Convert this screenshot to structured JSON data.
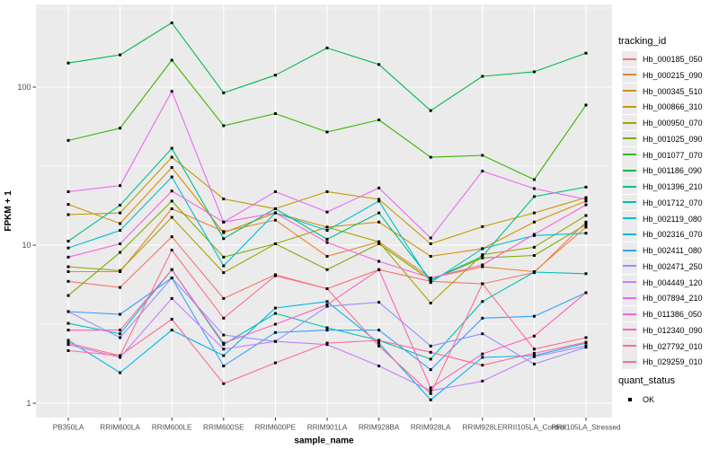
{
  "figure": {
    "panel_bg": "#EBEBEB",
    "grid_color": "#FFFFFF",
    "tick_mark_color": "#333333",
    "tick_label_color": "#4D4D4D",
    "axis_title_color": "#000000",
    "point_color": "#000000"
  },
  "chart_data": {
    "type": "line",
    "title": "",
    "xlabel": "sample_name",
    "ylabel": "FPKM + 1",
    "y_scale": "log10",
    "y_ticks": [
      "1",
      "10",
      "100"
    ],
    "y_tick_values": [
      1,
      10,
      100
    ],
    "y_minor_values": [
      3.1623,
      31.623,
      316.23
    ],
    "ylim": [
      0.81,
      334
    ],
    "grid": true,
    "legend_position": "right",
    "legend_title": "tracking_id",
    "quant_legend": {
      "title": "quant_status",
      "items": [
        {
          "label": "OK",
          "shape": "square",
          "color": "#000000"
        }
      ]
    },
    "point_marker": {
      "shape": "square",
      "color": "#000000",
      "size": 3
    },
    "categories": [
      "PB350LA",
      "RRIM600LA",
      "RRIM600LE",
      "RRIM600SE",
      "RRIM600PE",
      "RRIM901LA",
      "RRIM928BA",
      "RRIM928LA",
      "RRIM928LE",
      "RRII105LA_Control",
      "RRII105LA_Stressed"
    ],
    "series": [
      {
        "name": "Hb_000185_050",
        "color": "#F8766D",
        "values": [
          5.9,
          5.4,
          11.3,
          4.6,
          6.5,
          5.3,
          7.0,
          5.9,
          5.7,
          6.7,
          14.0
        ]
      },
      {
        "name": "Hb_000215_090",
        "color": "#EA8331",
        "values": [
          6.8,
          6.8,
          17.0,
          12.2,
          14.4,
          8.5,
          10.5,
          6.2,
          7.3,
          6.8,
          13.0
        ]
      },
      {
        "name": "Hb_000345_510",
        "color": "#D89000",
        "values": [
          18.1,
          13.7,
          31.0,
          12.0,
          16.0,
          13.0,
          14.0,
          8.5,
          9.5,
          14.0,
          19.0
        ]
      },
      {
        "name": "Hb_000866_310",
        "color": "#C09B00",
        "values": [
          15.6,
          16.0,
          36.0,
          19.6,
          17.0,
          21.8,
          19.5,
          10.2,
          13.1,
          16.0,
          20.0
        ]
      },
      {
        "name": "Hb_000950_070",
        "color": "#A3A500",
        "values": [
          7.3,
          6.9,
          15.0,
          6.7,
          10.2,
          13.0,
          10.5,
          4.3,
          8.7,
          9.7,
          15.4
        ]
      },
      {
        "name": "Hb_001025_090",
        "color": "#7CAE00",
        "values": [
          4.8,
          9.0,
          19.0,
          8.4,
          10.2,
          7.0,
          10.2,
          6.0,
          8.3,
          8.6,
          13.5
        ]
      },
      {
        "name": "Hb_001077_070",
        "color": "#39B600",
        "values": [
          46,
          55,
          148,
          57,
          68,
          52,
          62,
          36,
          37,
          26,
          77
        ]
      },
      {
        "name": "Hb_001186_090",
        "color": "#00BB4E",
        "values": [
          142,
          160,
          255,
          92,
          119,
          177,
          139,
          71,
          117,
          125,
          164
        ]
      },
      {
        "name": "Hb_001396_210",
        "color": "#00C087",
        "values": [
          10.6,
          17.9,
          41.0,
          11.0,
          17.0,
          10.9,
          16.0,
          6.0,
          8.5,
          20.3,
          23.3
        ]
      },
      {
        "name": "Hb_001712_070",
        "color": "#00C0B2",
        "values": [
          3.2,
          2.75,
          7.0,
          2.35,
          3.7,
          3.0,
          2.5,
          1.9,
          4.4,
          6.75,
          6.6
        ]
      },
      {
        "name": "Hb_002119_080",
        "color": "#00BCD6",
        "values": [
          9.6,
          12.4,
          27.0,
          7.4,
          16.0,
          12.4,
          19.0,
          5.8,
          9.5,
          11.5,
          11.9
        ]
      },
      {
        "name": "Hb_002316_070",
        "color": "#00B4EF",
        "values": [
          2.5,
          1.56,
          2.9,
          2.0,
          4.0,
          4.4,
          2.4,
          1.05,
          1.95,
          2.0,
          2.4
        ]
      },
      {
        "name": "Hb_002411_080",
        "color": "#35A2FF",
        "values": [
          3.8,
          3.65,
          6.2,
          1.72,
          2.8,
          2.9,
          2.9,
          1.63,
          3.45,
          3.55,
          5.0
        ]
      },
      {
        "name": "Hb_002471_250",
        "color": "#9590FF",
        "values": [
          3.8,
          2.6,
          6.2,
          2.7,
          2.46,
          4.1,
          4.35,
          2.3,
          2.75,
          1.77,
          2.26
        ]
      },
      {
        "name": "Hb_004449_120",
        "color": "#C77CFF",
        "values": [
          2.35,
          1.95,
          4.6,
          2.2,
          2.46,
          2.35,
          1.72,
          1.2,
          1.38,
          1.97,
          2.3
        ]
      },
      {
        "name": "Hb_007894_210",
        "color": "#E76BF3",
        "values": [
          21.8,
          23.8,
          94.0,
          14.0,
          21.8,
          16.2,
          23.0,
          11.1,
          29.4,
          22.8,
          19.5
        ]
      },
      {
        "name": "Hb_011386_050",
        "color": "#FA62DB",
        "values": [
          8.4,
          10.2,
          22.0,
          14.0,
          16.0,
          10.4,
          7.9,
          6.2,
          7.5,
          11.7,
          18.0
        ]
      },
      {
        "name": "Hb_012340_090",
        "color": "#FF62BC",
        "values": [
          2.9,
          2.9,
          7.0,
          2.4,
          3.16,
          4.2,
          7.0,
          1.25,
          2.05,
          2.66,
          5.0
        ]
      },
      {
        "name": "Hb_027792_010",
        "color": "#FF6A98",
        "values": [
          2.15,
          2.0,
          3.4,
          1.33,
          1.8,
          2.4,
          2.5,
          2.1,
          1.74,
          2.07,
          2.43
        ]
      },
      {
        "name": "Hb_029259_010",
        "color": "#FF6C90",
        "values": [
          2.4,
          2.0,
          9.3,
          3.45,
          6.4,
          5.3,
          2.3,
          1.15,
          5.7,
          2.2,
          2.6
        ]
      }
    ]
  }
}
